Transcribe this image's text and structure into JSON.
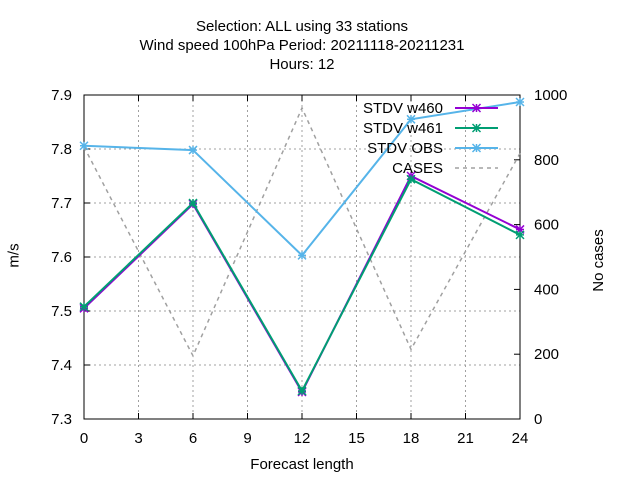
{
  "title": {
    "line1": "Selection: ALL using    33 stations",
    "line2": "Wind speed 100hPa   Period: 20211118-20211231",
    "line3": "Hours:  12"
  },
  "chart_data": {
    "type": "line",
    "xlabel": "Forecast length",
    "ylabel": "m/s",
    "y2label": "No cases",
    "xlim": [
      0,
      24
    ],
    "ylim": [
      7.3,
      7.9
    ],
    "y2lim": [
      0,
      1000
    ],
    "xticks": [
      "0",
      "3",
      "6",
      "9",
      "12",
      "15",
      "18",
      "21",
      "24"
    ],
    "yticks": [
      "7.3",
      "7.4",
      "7.5",
      "7.6",
      "7.7",
      "7.8",
      "7.9"
    ],
    "y2ticks": [
      "0",
      "200",
      "400",
      "600",
      "800",
      "1000"
    ],
    "grid": true,
    "legend_position": "top-right",
    "x": [
      0,
      6,
      12,
      18,
      24
    ],
    "series": [
      {
        "name": "STDV w460",
        "axis": "y",
        "color": "#9400d3",
        "marker": "star",
        "dash": false,
        "values": [
          7.505,
          7.698,
          7.35,
          7.75,
          7.651
        ]
      },
      {
        "name": "STDV w461",
        "axis": "y",
        "color": "#009e73",
        "marker": "star",
        "dash": false,
        "values": [
          7.508,
          7.7,
          7.352,
          7.744,
          7.641
        ]
      },
      {
        "name": "STDV OBS",
        "axis": "y",
        "color": "#56b4e9",
        "marker": "star",
        "dash": false,
        "values": [
          7.806,
          7.798,
          7.603,
          7.855,
          7.887
        ]
      },
      {
        "name": "CASES",
        "axis": "y2",
        "color": "#a0a0a0",
        "marker": "none",
        "dash": true,
        "values": [
          840,
          195,
          960,
          215,
          820
        ]
      }
    ]
  }
}
